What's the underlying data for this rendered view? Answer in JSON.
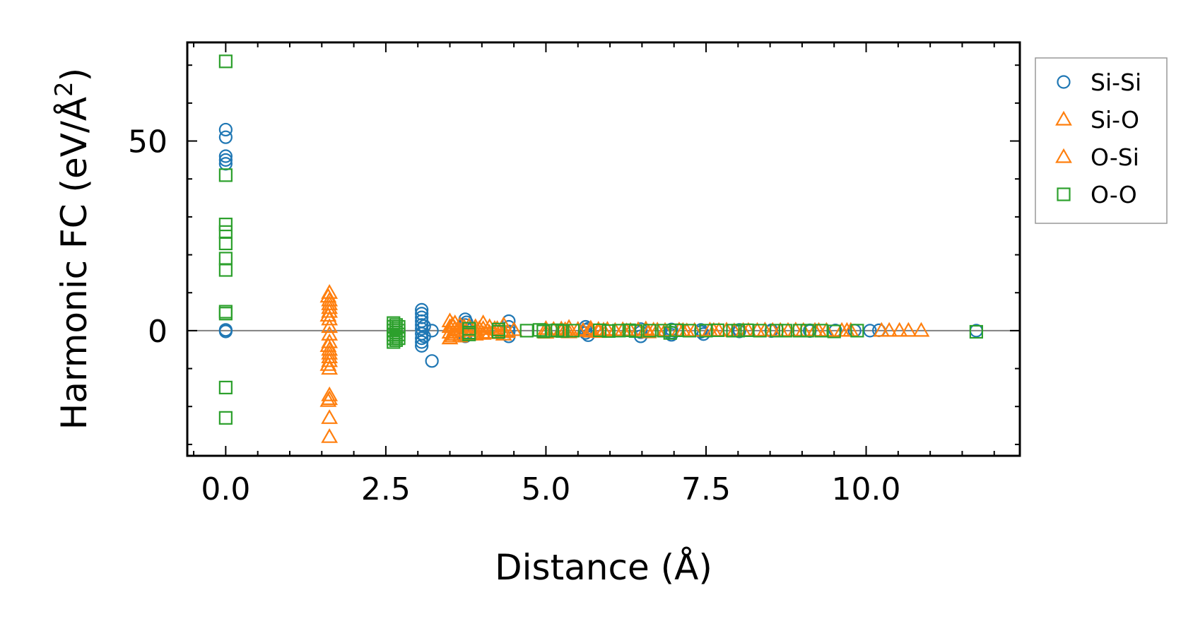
{
  "chart_data": {
    "type": "scatter",
    "title": "",
    "xlabel": "Distance (Å)",
    "ylabel_main": "Harmonic FC (eV/Å",
    "ylabel_sup": "2",
    "ylabel_close": ")",
    "xlim": [
      -0.6,
      12.4
    ],
    "ylim": [
      -33,
      76
    ],
    "xticks": [
      0.0,
      2.5,
      5.0,
      7.5,
      10.0
    ],
    "xtick_labels": [
      "0.0",
      "2.5",
      "5.0",
      "7.5",
      "10.0"
    ],
    "yticks": [
      0,
      50
    ],
    "ytick_labels": [
      "0",
      "50"
    ],
    "zero_line": true,
    "legend_position": "outside-top-right",
    "series": [
      {
        "name": "Si-Si",
        "color": "#1f77b4",
        "marker": "circle",
        "points": [
          [
            0.0,
            53
          ],
          [
            0.0,
            51
          ],
          [
            0.0,
            46
          ],
          [
            0.0,
            45
          ],
          [
            0.0,
            44
          ],
          [
            0.0,
            0.2
          ],
          [
            0.0,
            -0.2
          ],
          [
            3.06,
            5.5
          ],
          [
            3.06,
            4.5
          ],
          [
            3.06,
            3.5
          ],
          [
            3.06,
            2.5
          ],
          [
            3.06,
            1.5
          ],
          [
            3.06,
            0.5
          ],
          [
            3.06,
            -0.8
          ],
          [
            3.06,
            -2
          ],
          [
            3.06,
            -3
          ],
          [
            3.06,
            -4
          ],
          [
            3.1,
            1.2
          ],
          [
            3.1,
            -1.5
          ],
          [
            3.22,
            0
          ],
          [
            3.22,
            -8
          ],
          [
            3.74,
            3
          ],
          [
            3.74,
            1.5
          ],
          [
            3.74,
            -0.5
          ],
          [
            3.74,
            -1.5
          ],
          [
            3.76,
            2.2
          ],
          [
            3.76,
            0.5
          ],
          [
            4.42,
            2.5
          ],
          [
            4.42,
            1
          ],
          [
            4.42,
            -0.2
          ],
          [
            4.42,
            -1.5
          ],
          [
            5.62,
            1
          ],
          [
            5.62,
            0.2
          ],
          [
            5.62,
            -0.6
          ],
          [
            5.66,
            -1.2
          ],
          [
            5.66,
            0.5
          ],
          [
            6.48,
            0.4
          ],
          [
            6.48,
            -0.4
          ],
          [
            6.48,
            -1.5
          ],
          [
            6.96,
            0.3
          ],
          [
            6.96,
            -0.5
          ],
          [
            6.96,
            -1.1
          ],
          [
            7.42,
            0.2
          ],
          [
            7.42,
            -0.3
          ],
          [
            7.46,
            -0.9
          ],
          [
            8.02,
            0.2
          ],
          [
            8.02,
            -0.2
          ],
          [
            8.52,
            0.1
          ],
          [
            8.52,
            -0.1
          ],
          [
            9.12,
            0.1
          ],
          [
            9.12,
            -0.1
          ],
          [
            9.52,
            0.05
          ],
          [
            9.82,
            0
          ],
          [
            10.06,
            0
          ],
          [
            10.2,
            0.1
          ],
          [
            11.72,
            0
          ]
        ]
      },
      {
        "name": "Si-O",
        "color": "#ff7f0e",
        "marker": "triangle",
        "points": [
          [
            1.62,
            10
          ],
          [
            1.62,
            8
          ],
          [
            1.62,
            7
          ],
          [
            1.62,
            6
          ],
          [
            1.62,
            5
          ],
          [
            1.62,
            3
          ],
          [
            1.62,
            1
          ],
          [
            1.62,
            -1
          ],
          [
            1.62,
            -3
          ],
          [
            1.62,
            -5
          ],
          [
            1.62,
            -6
          ],
          [
            1.62,
            -7
          ],
          [
            1.62,
            -8
          ],
          [
            1.62,
            -10
          ],
          [
            1.62,
            -17
          ],
          [
            1.62,
            -18
          ],
          [
            1.62,
            -23
          ],
          [
            1.62,
            -28
          ],
          [
            3.5,
            2.5
          ],
          [
            3.5,
            1
          ],
          [
            3.5,
            -0.5
          ],
          [
            3.5,
            -2
          ],
          [
            3.58,
            2
          ],
          [
            3.58,
            0.5
          ],
          [
            3.58,
            -1
          ],
          [
            3.66,
            1.5
          ],
          [
            3.66,
            0
          ],
          [
            3.66,
            -1.5
          ],
          [
            3.8,
            1.2
          ],
          [
            3.8,
            -0.8
          ],
          [
            3.9,
            1
          ],
          [
            3.9,
            0
          ],
          [
            3.9,
            -1
          ],
          [
            4.02,
            2
          ],
          [
            4.02,
            0.5
          ],
          [
            4.02,
            -0.8
          ],
          [
            4.12,
            1
          ],
          [
            4.12,
            -0.5
          ],
          [
            4.2,
            0.5
          ],
          [
            4.2,
            -0.6
          ],
          [
            4.34,
            1.5
          ],
          [
            4.34,
            0
          ],
          [
            4.34,
            -1
          ],
          [
            4.5,
            0.2
          ],
          [
            5.0,
            0.5
          ],
          [
            5.0,
            -0.5
          ],
          [
            5.12,
            0.3
          ],
          [
            5.24,
            0.4
          ],
          [
            5.24,
            -0.2
          ],
          [
            5.36,
            0.8
          ],
          [
            5.36,
            -0.4
          ],
          [
            5.5,
            0.3
          ],
          [
            5.7,
            0.6
          ],
          [
            5.7,
            -0.2
          ],
          [
            5.82,
            0.3
          ],
          [
            5.82,
            -0.3
          ],
          [
            5.96,
            0.3
          ],
          [
            6.08,
            0
          ],
          [
            6.2,
            0.2
          ],
          [
            6.32,
            0
          ],
          [
            6.44,
            0.2
          ],
          [
            6.56,
            0.4
          ],
          [
            6.6,
            -0.4
          ],
          [
            6.74,
            0.1
          ],
          [
            6.86,
            0
          ],
          [
            7.08,
            0.1
          ],
          [
            7.2,
            -0.1
          ],
          [
            7.32,
            0
          ],
          [
            7.56,
            0.1
          ],
          [
            7.7,
            0
          ],
          [
            7.82,
            0.1
          ],
          [
            7.94,
            -0.1
          ],
          [
            8.08,
            0
          ],
          [
            8.3,
            0
          ],
          [
            8.42,
            0.1
          ],
          [
            8.66,
            0
          ],
          [
            8.78,
            0
          ],
          [
            8.9,
            0.1
          ],
          [
            9.02,
            0
          ],
          [
            9.26,
            0
          ],
          [
            9.38,
            0
          ],
          [
            9.62,
            0
          ],
          [
            9.76,
            0
          ],
          [
            10.24,
            0
          ],
          [
            10.52,
            0
          ],
          [
            10.66,
            0
          ],
          [
            10.86,
            0
          ]
        ]
      },
      {
        "name": "O-Si",
        "color": "#ff7f0e",
        "marker": "triangle",
        "points": [
          [
            1.6,
            9
          ],
          [
            1.6,
            4
          ],
          [
            1.6,
            -4
          ],
          [
            1.6,
            -9
          ],
          [
            1.6,
            -18.5
          ],
          [
            3.54,
            1.5
          ],
          [
            3.54,
            -1.5
          ],
          [
            3.62,
            0
          ],
          [
            3.72,
            1
          ],
          [
            3.72,
            -1
          ],
          [
            3.96,
            0.5
          ],
          [
            4.06,
            -0.5
          ],
          [
            4.24,
            0.5
          ],
          [
            4.4,
            -0.3
          ],
          [
            5.3,
            0.2
          ],
          [
            5.58,
            0
          ],
          [
            5.9,
            0.1
          ],
          [
            6.26,
            -0.1
          ],
          [
            6.68,
            0.1
          ],
          [
            7.14,
            0
          ],
          [
            7.62,
            0
          ],
          [
            8.16,
            0
          ],
          [
            8.54,
            0
          ],
          [
            9.2,
            0
          ],
          [
            9.7,
            0
          ],
          [
            10.36,
            0
          ]
        ]
      },
      {
        "name": "O-O",
        "color": "#2ca02c",
        "marker": "square",
        "points": [
          [
            0.0,
            71
          ],
          [
            0.0,
            41
          ],
          [
            0.0,
            28
          ],
          [
            0.0,
            26
          ],
          [
            0.0,
            23
          ],
          [
            0.0,
            19
          ],
          [
            0.0,
            16
          ],
          [
            0.0,
            5
          ],
          [
            0.0,
            4.5
          ],
          [
            0.0,
            -15
          ],
          [
            0.0,
            -23
          ],
          [
            2.62,
            2
          ],
          [
            2.62,
            1
          ],
          [
            2.62,
            0
          ],
          [
            2.62,
            -1
          ],
          [
            2.62,
            -2
          ],
          [
            2.62,
            -3
          ],
          [
            2.66,
            1.5
          ],
          [
            2.66,
            0.5
          ],
          [
            2.66,
            -0.5
          ],
          [
            2.66,
            -1.5
          ],
          [
            2.66,
            -2.5
          ],
          [
            2.7,
            1
          ],
          [
            2.7,
            0
          ],
          [
            2.7,
            -1
          ],
          [
            2.7,
            -2
          ],
          [
            3.8,
            0.5
          ],
          [
            3.8,
            -0.5
          ],
          [
            3.8,
            -1
          ],
          [
            4.26,
            0.3
          ],
          [
            4.26,
            -0.3
          ],
          [
            4.7,
            0
          ],
          [
            4.9,
            0.2
          ],
          [
            4.96,
            -0.2
          ],
          [
            5.1,
            0
          ],
          [
            5.18,
            0.1
          ],
          [
            5.26,
            -0.1
          ],
          [
            5.42,
            0
          ],
          [
            5.84,
            0.1
          ],
          [
            5.98,
            -0.1
          ],
          [
            6.14,
            0
          ],
          [
            6.3,
            0.1
          ],
          [
            6.4,
            -0.1
          ],
          [
            6.62,
            0
          ],
          [
            6.84,
            0
          ],
          [
            6.94,
            -0.6
          ],
          [
            7.04,
            0.1
          ],
          [
            7.24,
            0
          ],
          [
            7.5,
            0
          ],
          [
            7.68,
            0.1
          ],
          [
            7.92,
            0
          ],
          [
            8.0,
            0
          ],
          [
            8.14,
            0.1
          ],
          [
            8.34,
            0
          ],
          [
            8.6,
            0
          ],
          [
            8.74,
            0
          ],
          [
            8.96,
            0
          ],
          [
            9.08,
            0
          ],
          [
            9.3,
            0
          ],
          [
            9.5,
            -0.2
          ],
          [
            9.86,
            0
          ],
          [
            11.72,
            -0.3
          ]
        ]
      }
    ]
  }
}
